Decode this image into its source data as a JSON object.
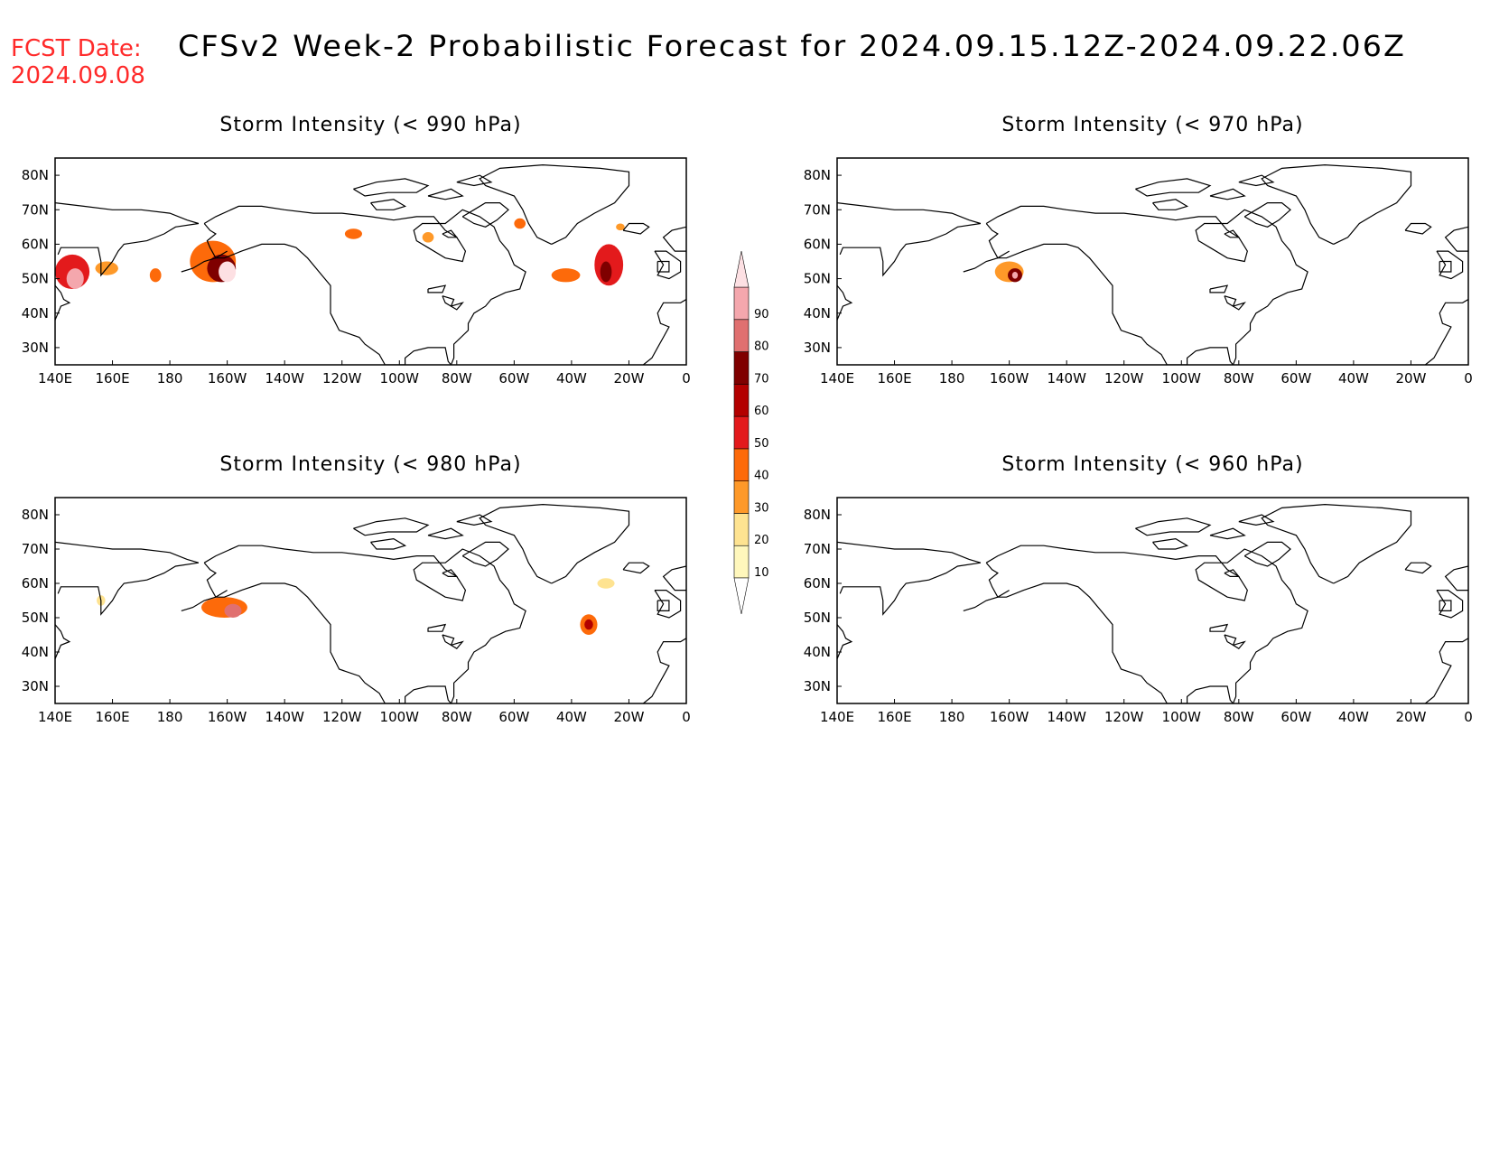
{
  "header": {
    "fcst_label": "FCST Date:",
    "fcst_date": "2024.09.08",
    "title": "CFSv2 Week-2 Probabilistic Forecast for 2024.09.15.12Z-2024.09.22.06Z"
  },
  "axes": {
    "lon_labels": [
      "140E",
      "160E",
      "180",
      "160W",
      "140W",
      "120W",
      "100W",
      "80W",
      "60W",
      "40W",
      "20W",
      "0"
    ],
    "lat_labels": [
      "80N",
      "70N",
      "60N",
      "50N",
      "40N",
      "30N"
    ]
  },
  "colorbar": {
    "levels": [
      "10",
      "20",
      "30",
      "40",
      "50",
      "60",
      "70",
      "80",
      "90"
    ],
    "colors": [
      "#fff7bc",
      "#fee391",
      "#fe9929",
      "#fd6a0a",
      "#e31a1c",
      "#b30000",
      "#7f0000",
      "#e07070",
      "#f4a7ad",
      "#fde0e3"
    ]
  },
  "panels": [
    {
      "title": "Storm Intensity (< 990 hPa)",
      "blobs": [
        {
          "lon": 146,
          "lat": 52,
          "rx": 6,
          "ry": 5,
          "level": 4
        },
        {
          "lon": 147,
          "lat": 50,
          "rx": 3,
          "ry": 3,
          "level": 8
        },
        {
          "lon": 158,
          "lat": 53,
          "rx": 4,
          "ry": 2,
          "level": 2
        },
        {
          "lon": 175,
          "lat": 51,
          "rx": 2,
          "ry": 2,
          "level": 3
        },
        {
          "lon": 195,
          "lat": 55,
          "rx": 8,
          "ry": 6,
          "level": 3
        },
        {
          "lon": 198,
          "lat": 53,
          "rx": 5,
          "ry": 4,
          "level": 6
        },
        {
          "lon": 200,
          "lat": 52,
          "rx": 3,
          "ry": 3,
          "level": 9
        },
        {
          "lon": 244,
          "lat": 63,
          "rx": 3,
          "ry": 1.5,
          "level": 3
        },
        {
          "lon": 270,
          "lat": 62,
          "rx": 2,
          "ry": 1.5,
          "level": 2
        },
        {
          "lon": 302,
          "lat": 66,
          "rx": 2,
          "ry": 1.5,
          "level": 3
        },
        {
          "lon": 318,
          "lat": 51,
          "rx": 5,
          "ry": 2,
          "level": 3
        },
        {
          "lon": 333,
          "lat": 54,
          "rx": 5,
          "ry": 6,
          "level": 4
        },
        {
          "lon": 332,
          "lat": 52,
          "rx": 2,
          "ry": 3,
          "level": 6
        },
        {
          "lon": 337,
          "lat": 65,
          "rx": 1.5,
          "ry": 1,
          "level": 2
        }
      ]
    },
    {
      "title": "Storm Intensity (< 970 hPa)",
      "blobs": [
        {
          "lon": 200,
          "lat": 52,
          "rx": 5,
          "ry": 3,
          "level": 2
        },
        {
          "lon": 202,
          "lat": 51,
          "rx": 2.5,
          "ry": 2,
          "level": 6
        },
        {
          "lon": 202,
          "lat": 51,
          "rx": 1,
          "ry": 1,
          "level": 8
        }
      ]
    },
    {
      "title": "Storm Intensity (< 980 hPa)",
      "blobs": [
        {
          "lon": 156,
          "lat": 55,
          "rx": 1.5,
          "ry": 1.5,
          "level": 1
        },
        {
          "lon": 199,
          "lat": 53,
          "rx": 8,
          "ry": 3,
          "level": 3
        },
        {
          "lon": 202,
          "lat": 52,
          "rx": 3,
          "ry": 2,
          "level": 7
        },
        {
          "lon": 326,
          "lat": 48,
          "rx": 3,
          "ry": 3,
          "level": 3
        },
        {
          "lon": 326,
          "lat": 48,
          "rx": 1.5,
          "ry": 1.5,
          "level": 5
        },
        {
          "lon": 332,
          "lat": 60,
          "rx": 3,
          "ry": 1.5,
          "level": 1
        }
      ]
    },
    {
      "title": "Storm Intensity (< 960 hPa)",
      "blobs": []
    }
  ]
}
